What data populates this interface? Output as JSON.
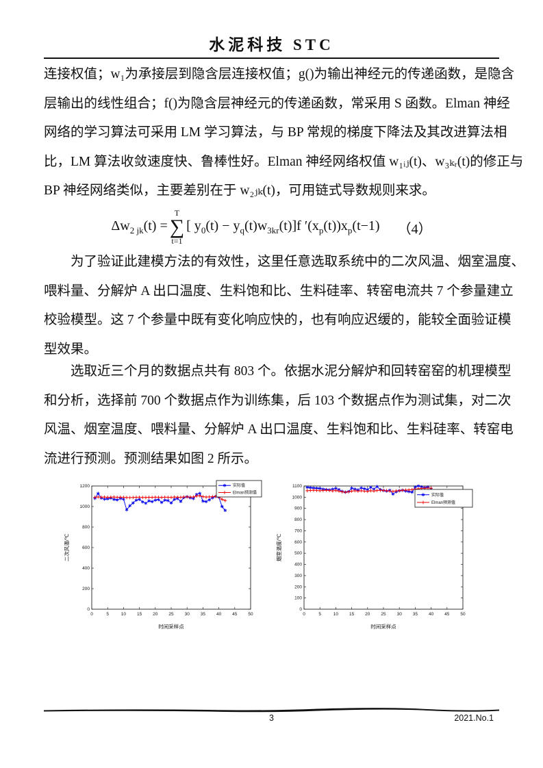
{
  "header": {
    "journal_title": "水泥科技 STC"
  },
  "footer": {
    "page_number": "3",
    "issue": "2021.No.1"
  },
  "body": {
    "p1": [
      "连接权值；w₁为承接层到隐含层连接权值；g()为输出神经元的传递函数，是隐含",
      "层输出的线性组合；f()为隐含层神经元的传递函数，常采用 S 函数。Elman 神经",
      "网络的学习算法可采用 LM 学习算法，与 BP 常规的梯度下降法及其改进算法相",
      "比，LM 算法收敛速度快、鲁棒性好。Elman 神经网络权值 w₁ᵢⱼ(t)、w₃ₖᵣ(t)的修正与",
      "BP 神经网络类似，主要差别在于 w₂ⱼₖ(t)，可用链式导数规则来求。"
    ],
    "p2": [
      "为了验证此建模方法的有效性，这里任意选取系统中的二次风温、烟室温度、",
      "喂料量、分解炉 A 出口温度、生料饱和比、生料硅率、转窑电流共 7 个参量建立",
      "校验模型。这 7 个参量中既有变化响应快的，也有响应迟缓的，能较全面验证模",
      "型效果。"
    ],
    "p3": [
      "选取近三个月的数据点共有 803 个。依据水泥分解炉和回转窑窑的机理模型",
      "和分析，选择前 700 个数据点作为训练集，后 103 个数据点作为测试集，对二次",
      "风温、烟室温度、喂料量、分解炉 A 出口温度、生料饱和比、生料硅率、转窑电",
      "流进行预测。预测结果如图 2 所示。"
    ]
  },
  "formula": {
    "lhs": [
      {
        "t": "Δw"
      },
      {
        "s": "2 jk"
      },
      {
        "t": "(t) = "
      }
    ],
    "sum_top": "T",
    "sum_symbol": "∑",
    "sum_bottom": "t=1",
    "rhs": [
      {
        "t": "[ y"
      },
      {
        "s": "0"
      },
      {
        "t": "(t) − y"
      },
      {
        "s": "q"
      },
      {
        "t": "(t)w"
      },
      {
        "s": "3kr"
      },
      {
        "t": "(t)]f ′(x"
      },
      {
        "s": "p"
      },
      {
        "t": "(t))x"
      },
      {
        "s": "p"
      },
      {
        "t": "(t−1)"
      }
    ],
    "tag": "（4）"
  },
  "colors": {
    "actual": "#0000ee",
    "predicted": "#ee0000",
    "axis": "#222222"
  },
  "chart_data": [
    {
      "type": "line",
      "name": "secondary-air-temperature",
      "ylabel": "二次风温/℃",
      "xlabel": "时间采样点",
      "xlim": [
        0,
        50
      ],
      "ylim": [
        0,
        1200
      ],
      "xticks": [
        0,
        5,
        10,
        15,
        20,
        25,
        30,
        35,
        40,
        45,
        50
      ],
      "yticks": [
        0,
        200,
        400,
        600,
        800,
        1000,
        1200
      ],
      "legend_pos": {
        "x": 228,
        "y": 5,
        "w": 66,
        "h": 24
      },
      "series": [
        {
          "name": "实际值",
          "marker": "asterisk",
          "color": "#0000ee",
          "x": [
            1,
            2,
            3,
            4,
            5,
            6,
            7,
            8,
            9,
            10,
            11,
            12,
            13,
            14,
            15,
            16,
            17,
            18,
            19,
            20,
            21,
            22,
            23,
            24,
            25,
            26,
            27,
            28,
            29,
            30,
            31,
            32,
            33,
            34,
            35,
            36,
            37,
            38,
            39,
            40,
            41,
            42
          ],
          "y": [
            1080,
            1128,
            1082,
            1072,
            1075,
            1082,
            1070,
            1065,
            1078,
            1072,
            968,
            1008,
            1035,
            1062,
            1070,
            1045,
            1032,
            1055,
            1048,
            1062,
            1068,
            1040,
            1062,
            1058,
            1035,
            1070,
            1078,
            1050,
            1088,
            1095,
            1085,
            1078,
            1118,
            1128,
            1052,
            1048,
            1065,
            1085,
            1098,
            1092,
            1000,
            962
          ]
        },
        {
          "name": "Elman预测值",
          "marker": "plus",
          "color": "#ee0000",
          "x": [
            1,
            2,
            3,
            4,
            5,
            6,
            7,
            8,
            9,
            10,
            11,
            12,
            13,
            14,
            15,
            16,
            17,
            18,
            19,
            20,
            21,
            22,
            23,
            24,
            25,
            26,
            27,
            28,
            29,
            30,
            31,
            32,
            33,
            34,
            35,
            36,
            37,
            38,
            39,
            40,
            41,
            42
          ],
          "y": [
            1090,
            1093,
            1091,
            1092,
            1090,
            1091,
            1092,
            1090,
            1091,
            1090,
            1088,
            1087,
            1088,
            1090,
            1091,
            1089,
            1088,
            1090,
            1089,
            1091,
            1090,
            1089,
            1091,
            1090,
            1089,
            1092,
            1091,
            1090,
            1093,
            1094,
            1092,
            1093,
            1102,
            1105,
            1096,
            1092,
            1094,
            1096,
            1098,
            1094,
            1070,
            1058
          ]
        }
      ]
    },
    {
      "type": "line",
      "name": "smoke-chamber-temperature",
      "ylabel": "烟室温度/℃",
      "xlabel": "时间采样点",
      "xlim": [
        0,
        50
      ],
      "ylim": [
        0,
        1100
      ],
      "xticks": [
        0,
        5,
        10,
        15,
        20,
        25,
        30,
        35,
        40,
        45,
        50
      ],
      "yticks": [
        0,
        100,
        200,
        300,
        400,
        500,
        600,
        700,
        800,
        900,
        1000,
        1100
      ],
      "legend_pos": {
        "x": 208,
        "y": 18,
        "w": 84,
        "h": 26
      },
      "series": [
        {
          "name": "实际值",
          "marker": "asterisk",
          "color": "#0000ee",
          "x": [
            1,
            2,
            3,
            4,
            5,
            6,
            7,
            8,
            9,
            10,
            11,
            12,
            13,
            14,
            15,
            16,
            17,
            18,
            19,
            20,
            21,
            22,
            23,
            24,
            25,
            26,
            27,
            28,
            29,
            30,
            31,
            32,
            33,
            34,
            35,
            36,
            37,
            38,
            39,
            40
          ],
          "y": [
            1088,
            1085,
            1082,
            1080,
            1078,
            1072,
            1068,
            1065,
            1072,
            1078,
            1068,
            1052,
            1045,
            1050,
            1080,
            1072,
            1065,
            1082,
            1075,
            1068,
            1088,
            1072,
            1095,
            1068,
            1060,
            1055,
            1062,
            1028,
            1048,
            1058,
            1062,
            1055,
            1050,
            1045,
            1090,
            1100,
            1092,
            1085,
            1090,
            1075
          ]
        },
        {
          "name": "Elman预测值",
          "marker": "plus",
          "color": "#ee0000",
          "x": [
            1,
            2,
            3,
            4,
            5,
            6,
            7,
            8,
            9,
            10,
            11,
            12,
            13,
            14,
            15,
            16,
            17,
            18,
            19,
            20,
            21,
            22,
            23,
            24,
            25,
            26,
            27,
            28,
            29,
            30,
            31,
            32,
            33,
            34,
            35,
            36,
            37,
            38,
            39,
            40
          ],
          "y": [
            1058,
            1060,
            1062,
            1060,
            1058,
            1060,
            1062,
            1060,
            1056,
            1060,
            1054,
            1048,
            1044,
            1048,
            1054,
            1058,
            1054,
            1058,
            1054,
            1052,
            1058,
            1055,
            1060,
            1062,
            1060,
            1058,
            1055,
            1052,
            1056,
            1058,
            1062,
            1064,
            1065,
            1068,
            1072,
            1075,
            1078,
            1080,
            1082,
            1080
          ]
        }
      ]
    }
  ]
}
